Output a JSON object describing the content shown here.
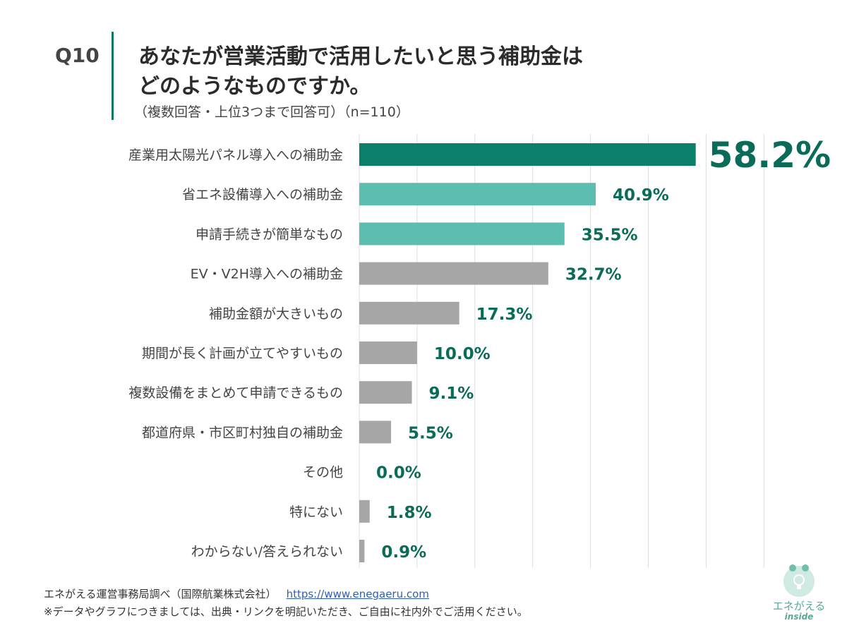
{
  "header": {
    "qnum": "Q10",
    "title_line1": "あなたが営業活動で活用したいと思う補助金は",
    "title_line2": "どのようなものですか。",
    "subtitle": "（複数回答・上位3つまで回答可）（n=110）"
  },
  "chart_data": {
    "type": "bar",
    "orientation": "horizontal",
    "categories": [
      "産業用太陽光パネル導入への補助金",
      "省エネ設備導入への補助金",
      "申請手続きが簡単なもの",
      "EV・V2H導入への補助金",
      "補助金額が大きいもの",
      "期間が長く計画が立てやすいもの",
      "複数設備をまとめて申請できるもの",
      "都道府県・市区町村独自の補助金",
      "その他",
      "特にない",
      "わからない/答えられない"
    ],
    "values": [
      58.2,
      40.9,
      35.5,
      32.7,
      17.3,
      10.0,
      9.1,
      5.5,
      0.0,
      1.8,
      0.9
    ],
    "value_labels": [
      "58.2%",
      "40.9%",
      "35.5%",
      "32.7%",
      "17.3%",
      "10.0%",
      "9.1%",
      "5.5%",
      "0.0%",
      "1.8%",
      "0.9%"
    ],
    "xlim": [
      0,
      70
    ],
    "grid": true,
    "colors": {
      "top": "#0a7f6a",
      "highlight": "#5cbdb0",
      "other": "#a6a6a6",
      "label": "#0a6b58",
      "grid": "#dddddd"
    }
  },
  "footer": {
    "source": "エネがえる運営事務局調べ（国際航業株式会社）",
    "url": "https://www.enegaeru.com",
    "note": "※データやグラフにつきましては、出典・リンクを明記いただき、ご自由に社内外でご活用ください。"
  },
  "logo": {
    "name": "エネがえる",
    "sub": "inside"
  }
}
